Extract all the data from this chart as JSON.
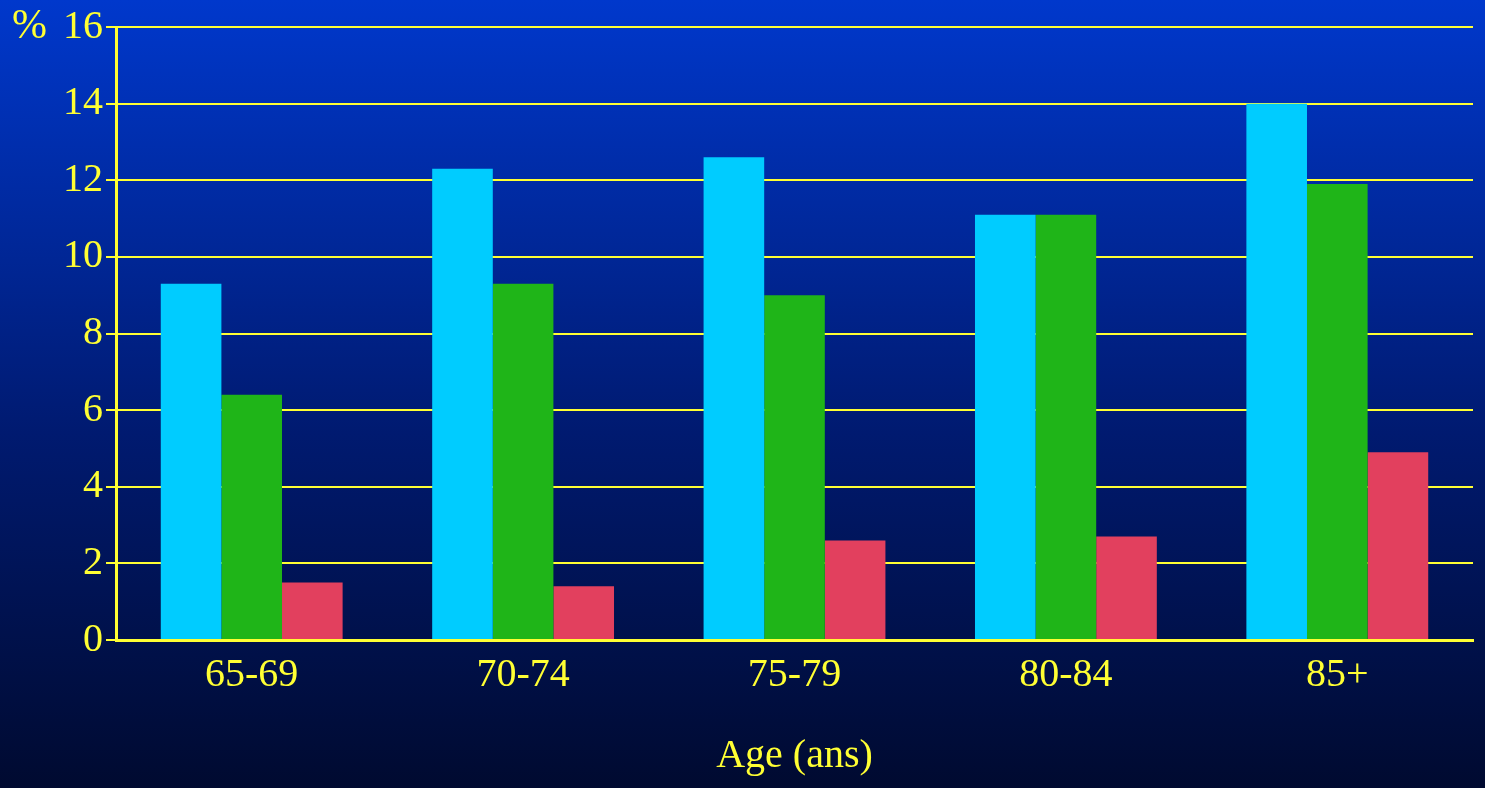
{
  "chart_data": {
    "type": "bar",
    "xlabel": "Age (ans)",
    "ylabel": "%",
    "categories": [
      "65-69",
      "70-74",
      "75-79",
      "80-84",
      "85+"
    ],
    "series": [
      {
        "color": "#00ccff",
        "values": [
          9.3,
          12.3,
          12.6,
          11.1,
          14.0
        ]
      },
      {
        "color": "#1fb518",
        "values": [
          6.4,
          9.3,
          9.0,
          11.1,
          11.9
        ]
      },
      {
        "color": "#e2405e",
        "values": [
          1.5,
          1.4,
          2.6,
          2.7,
          4.9
        ]
      }
    ],
    "ylim": [
      0,
      16
    ],
    "yticks": [
      0,
      2,
      4,
      6,
      8,
      10,
      12,
      14,
      16
    ],
    "grid": "y",
    "legend": false
  }
}
